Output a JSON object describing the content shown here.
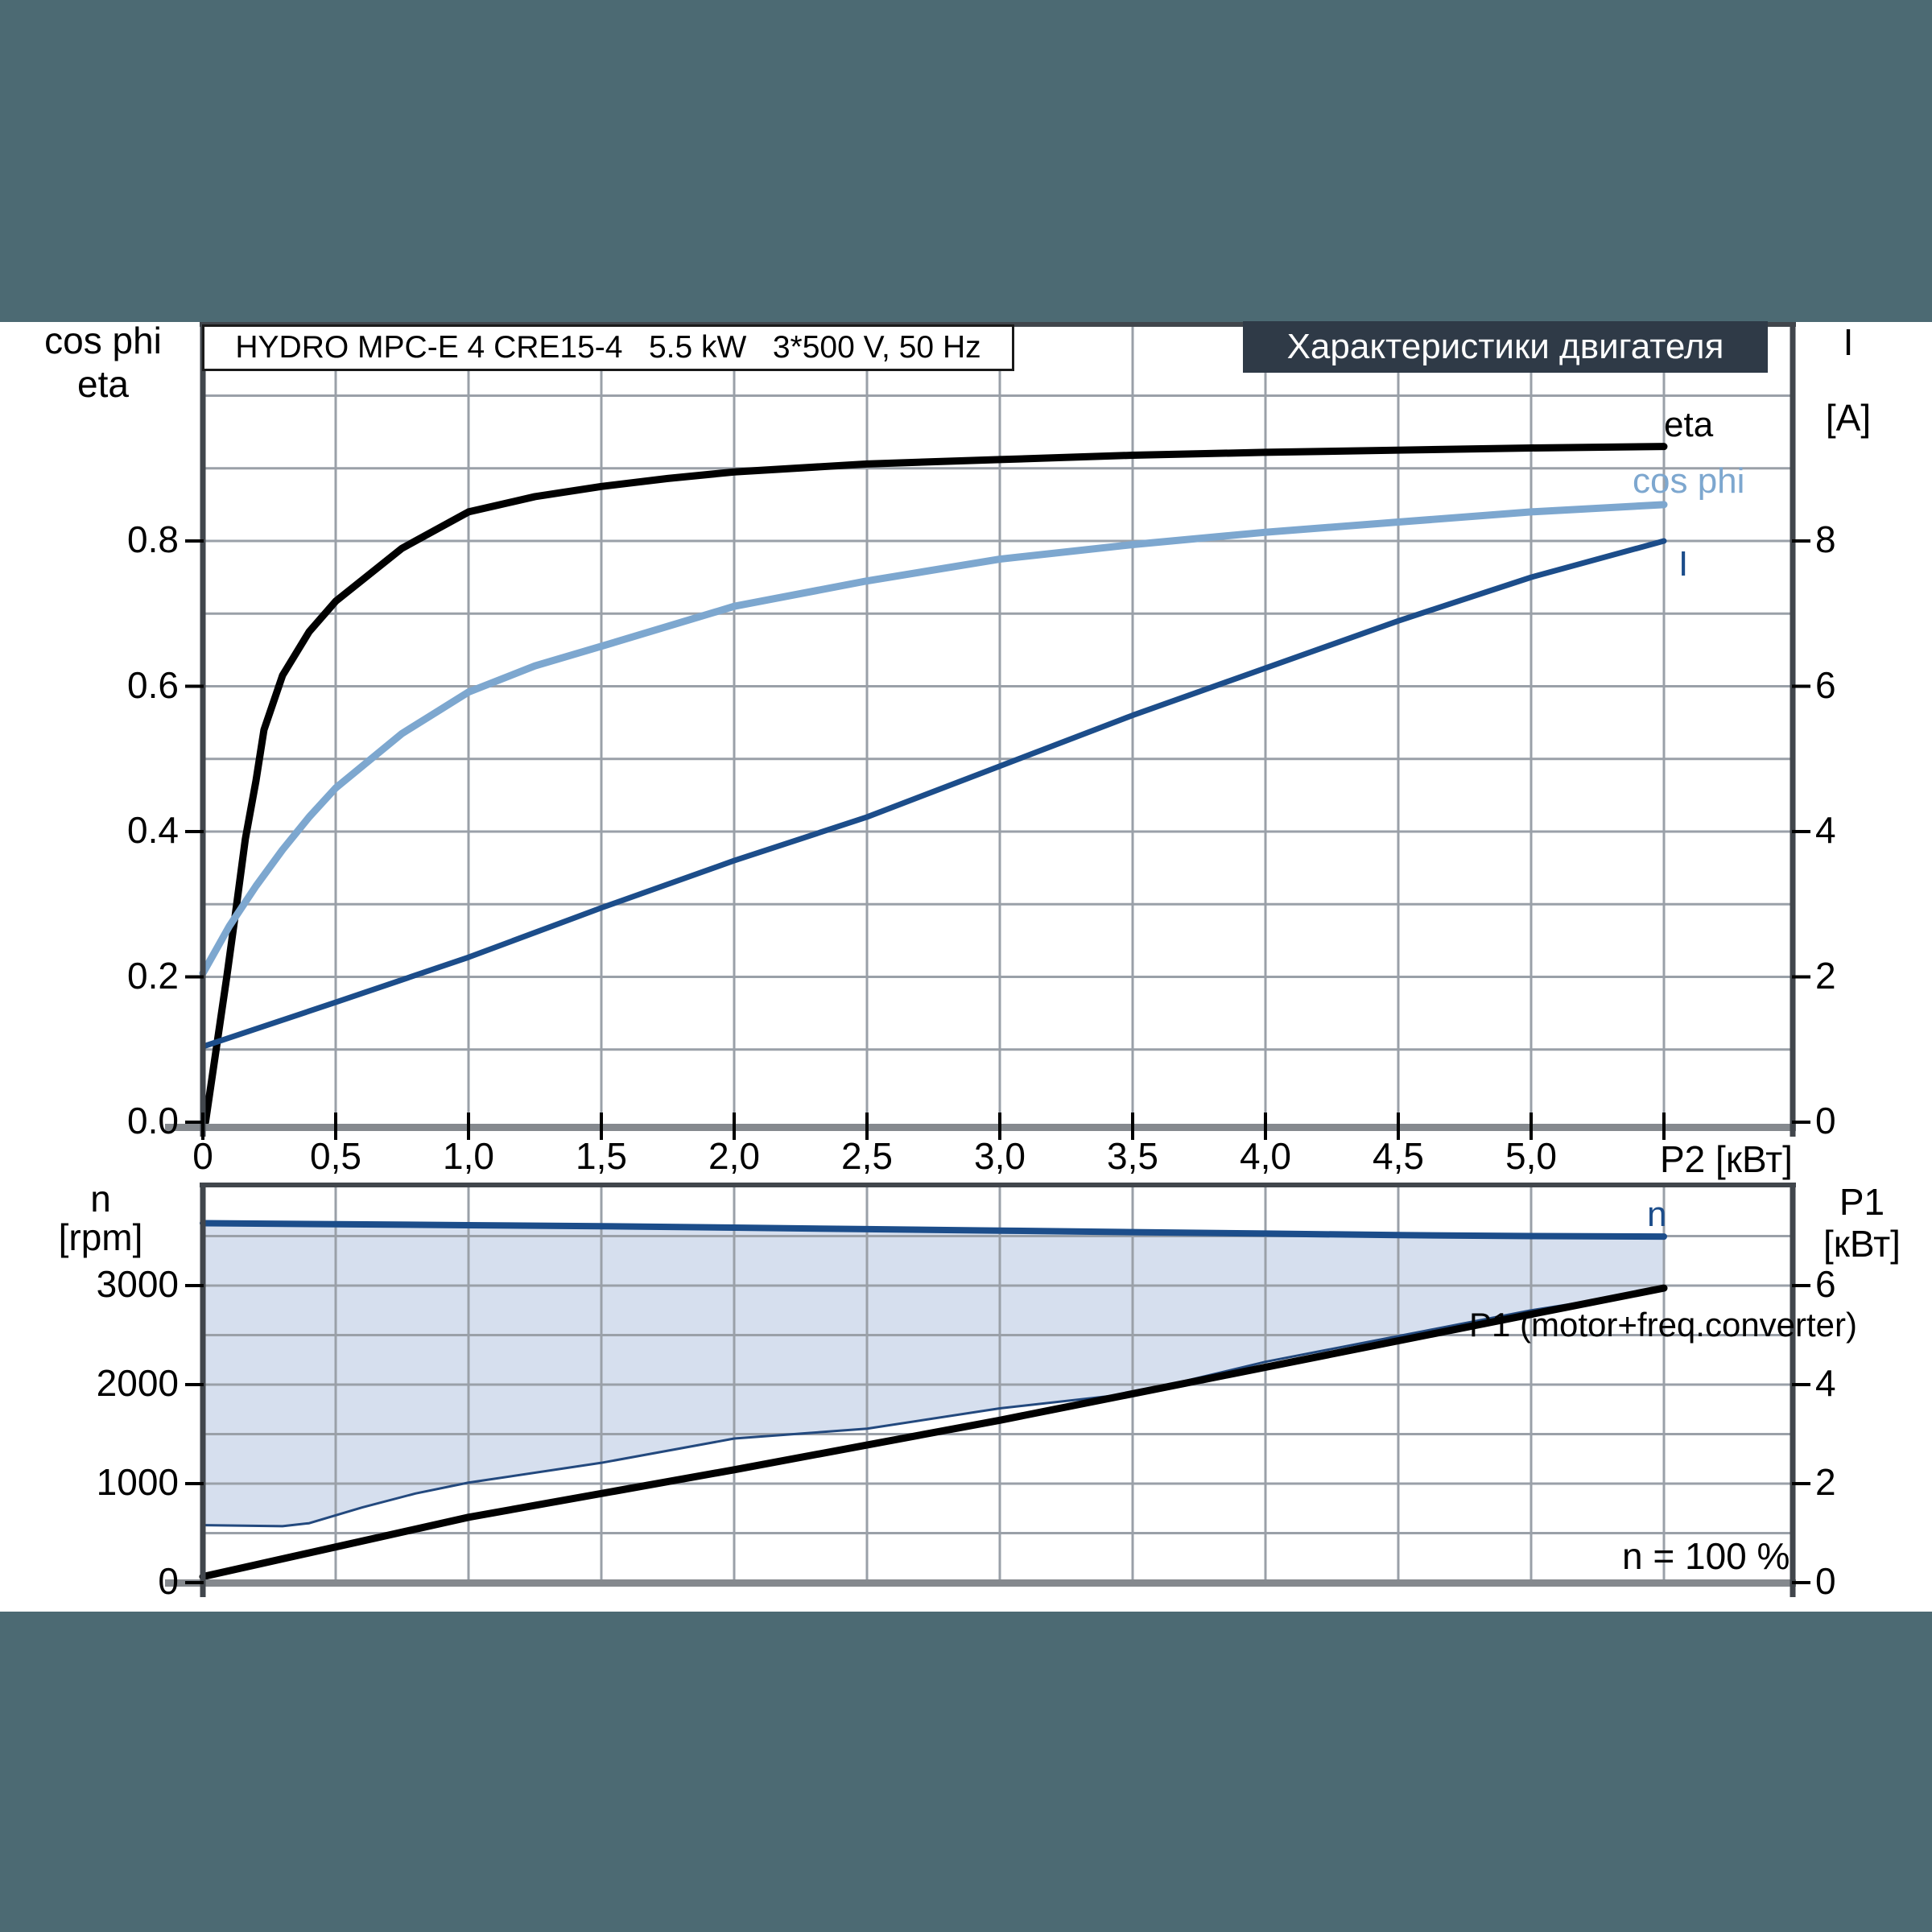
{
  "window": {
    "band_color": "#4c6a73",
    "content_background": "#ffffff"
  },
  "header_badge": {
    "text": "Характеристики двигателя",
    "background": "#2f3a47",
    "text_color": "#ffffff"
  },
  "title_box": {
    "text": "HYDRO MPC-E 4 CRE15-4   5.5 kW   3*500 V, 50 Hz"
  },
  "chart_data": [
    {
      "id": "motor-efficiency-chart",
      "type": "line",
      "x_axis": {
        "label": "P2 [кВт]",
        "tick_values": [
          0,
          0.5,
          1,
          1.5,
          2,
          2.5,
          3,
          3.5,
          4,
          4.5,
          5
        ],
        "tick_labels": [
          "0",
          "0,5",
          "1,0",
          "1,5",
          "2,0",
          "2,5",
          "3,0",
          "3,5",
          "4,0",
          "4,5",
          "5,0"
        ],
        "range": [
          0,
          5.98
        ],
        "grid_step": 0.5
      },
      "y_left": {
        "title_lines": [
          "cos phi",
          "eta"
        ],
        "tick_values": [
          0,
          0.2,
          0.4,
          0.6,
          0.8
        ],
        "tick_labels": [
          "0.0",
          "0.2",
          "0.4",
          "0.6",
          "0.8"
        ],
        "range": [
          0,
          1.1
        ],
        "grid_step": 0.1
      },
      "y_right": {
        "title_lines": [
          "I",
          "[A]"
        ],
        "tick_values": [
          0,
          2,
          4,
          6,
          8
        ],
        "tick_labels": [
          "0",
          "2",
          "4",
          "6",
          "8"
        ],
        "range": [
          0,
          11
        ]
      },
      "grid": true,
      "legend_position": "right-of-curves",
      "series": [
        {
          "name": "eta",
          "label": "eta",
          "axis": "left",
          "color": "#000000",
          "width": 9,
          "points": [
            [
              0.01,
              0
            ],
            [
              0.05,
              0.1
            ],
            [
              0.09,
              0.2
            ],
            [
              0.12,
              0.28
            ],
            [
              0.16,
              0.39
            ],
            [
              0.2,
              0.47
            ],
            [
              0.23,
              0.54
            ],
            [
              0.3,
              0.615
            ],
            [
              0.4,
              0.675
            ],
            [
              0.5,
              0.717
            ],
            [
              0.75,
              0.79
            ],
            [
              1.0,
              0.84
            ],
            [
              1.25,
              0.861
            ],
            [
              1.5,
              0.875
            ],
            [
              1.75,
              0.886
            ],
            [
              2.0,
              0.895
            ],
            [
              2.5,
              0.906
            ],
            [
              3.0,
              0.912
            ],
            [
              3.5,
              0.918
            ],
            [
              4.0,
              0.922
            ],
            [
              4.5,
              0.925
            ],
            [
              5.0,
              0.928
            ],
            [
              5.5,
              0.93
            ]
          ]
        },
        {
          "name": "cos phi",
          "label": "cos phi",
          "axis": "left",
          "color": "#7da7cf",
          "width": 9,
          "points": [
            [
              0,
              0.205
            ],
            [
              0.1,
              0.27
            ],
            [
              0.2,
              0.325
            ],
            [
              0.3,
              0.375
            ],
            [
              0.4,
              0.42
            ],
            [
              0.5,
              0.46
            ],
            [
              0.75,
              0.535
            ],
            [
              1.0,
              0.592
            ],
            [
              1.25,
              0.628
            ],
            [
              1.5,
              0.655
            ],
            [
              2.0,
              0.71
            ],
            [
              2.5,
              0.745
            ],
            [
              3.0,
              0.775
            ],
            [
              3.5,
              0.795
            ],
            [
              4.0,
              0.812
            ],
            [
              4.5,
              0.826
            ],
            [
              5.0,
              0.84
            ],
            [
              5.5,
              0.85
            ]
          ]
        },
        {
          "name": "I",
          "label": "I",
          "axis": "right",
          "color": "#1c4d8a",
          "width": 7,
          "points": [
            [
              0,
              1.04
            ],
            [
              0.5,
              1.65
            ],
            [
              1.0,
              2.27
            ],
            [
              1.5,
              2.95
            ],
            [
              2.0,
              3.6
            ],
            [
              2.5,
              4.2
            ],
            [
              3.0,
              4.9
            ],
            [
              3.5,
              5.6
            ],
            [
              4.0,
              6.25
            ],
            [
              4.5,
              6.9
            ],
            [
              5.0,
              7.5
            ],
            [
              5.5,
              8.0
            ]
          ]
        }
      ]
    },
    {
      "id": "speed-power-chart",
      "type": "line-area",
      "x_axis": {
        "label": "",
        "shared_with_top": true,
        "range": [
          0,
          5.98
        ],
        "grid_step": 0.5
      },
      "y_left": {
        "title_lines": [
          "n",
          "[rpm]"
        ],
        "tick_values": [
          0,
          1000,
          2000,
          3000
        ],
        "tick_labels": [
          "0",
          "1000",
          "2000",
          "3000"
        ],
        "range": [
          0,
          4016
        ],
        "grid_step": 500
      },
      "y_right": {
        "title_lines": [
          "P1",
          "[кВт]"
        ],
        "tick_values": [
          0,
          2,
          4,
          6
        ],
        "tick_labels": [
          "0",
          "2",
          "4",
          "6"
        ],
        "range": [
          0,
          8.03
        ]
      },
      "grid": true,
      "area": {
        "name": "speed-operating-range",
        "color": "#d6dfee"
      },
      "series": [
        {
          "name": "n",
          "label": "n",
          "axis": "left",
          "color": "#1c4d8a",
          "width": 8,
          "points": [
            [
              0,
              3630
            ],
            [
              0.5,
              3620
            ],
            [
              1,
              3610
            ],
            [
              1.5,
              3600
            ],
            [
              2,
              3585
            ],
            [
              2.5,
              3570
            ],
            [
              3,
              3555
            ],
            [
              3.5,
              3540
            ],
            [
              4,
              3525
            ],
            [
              4.5,
              3510
            ],
            [
              5,
              3500
            ],
            [
              5.5,
              3495
            ]
          ]
        },
        {
          "name": "n min boundary",
          "axis": "left",
          "color": "#23497e",
          "width": 3,
          "points": [
            [
              0,
              580
            ],
            [
              0.3,
              570
            ],
            [
              0.4,
              600
            ],
            [
              0.6,
              760
            ],
            [
              0.8,
              900
            ],
            [
              1.0,
              1010
            ],
            [
              1.5,
              1210
            ],
            [
              2.0,
              1455
            ],
            [
              2.5,
              1555
            ],
            [
              3.0,
              1760
            ],
            [
              3.5,
              1910
            ],
            [
              4.0,
              2230
            ],
            [
              4.5,
              2490
            ],
            [
              5.0,
              2750
            ],
            [
              5.5,
              2960
            ]
          ]
        },
        {
          "name": "P1 motor freq converter",
          "axis": "right",
          "color": "#000000",
          "width": 9,
          "points": [
            [
              0,
              0.12
            ],
            [
              1,
              1.32
            ],
            [
              2,
              2.28
            ],
            [
              3,
              3.28
            ],
            [
              4,
              4.35
            ],
            [
              5,
              5.42
            ],
            [
              5.5,
              5.95
            ]
          ]
        }
      ],
      "annotations": [
        {
          "text": "P1 (motor+freq.converter)"
        },
        {
          "text": "n = 100 %"
        }
      ]
    }
  ]
}
